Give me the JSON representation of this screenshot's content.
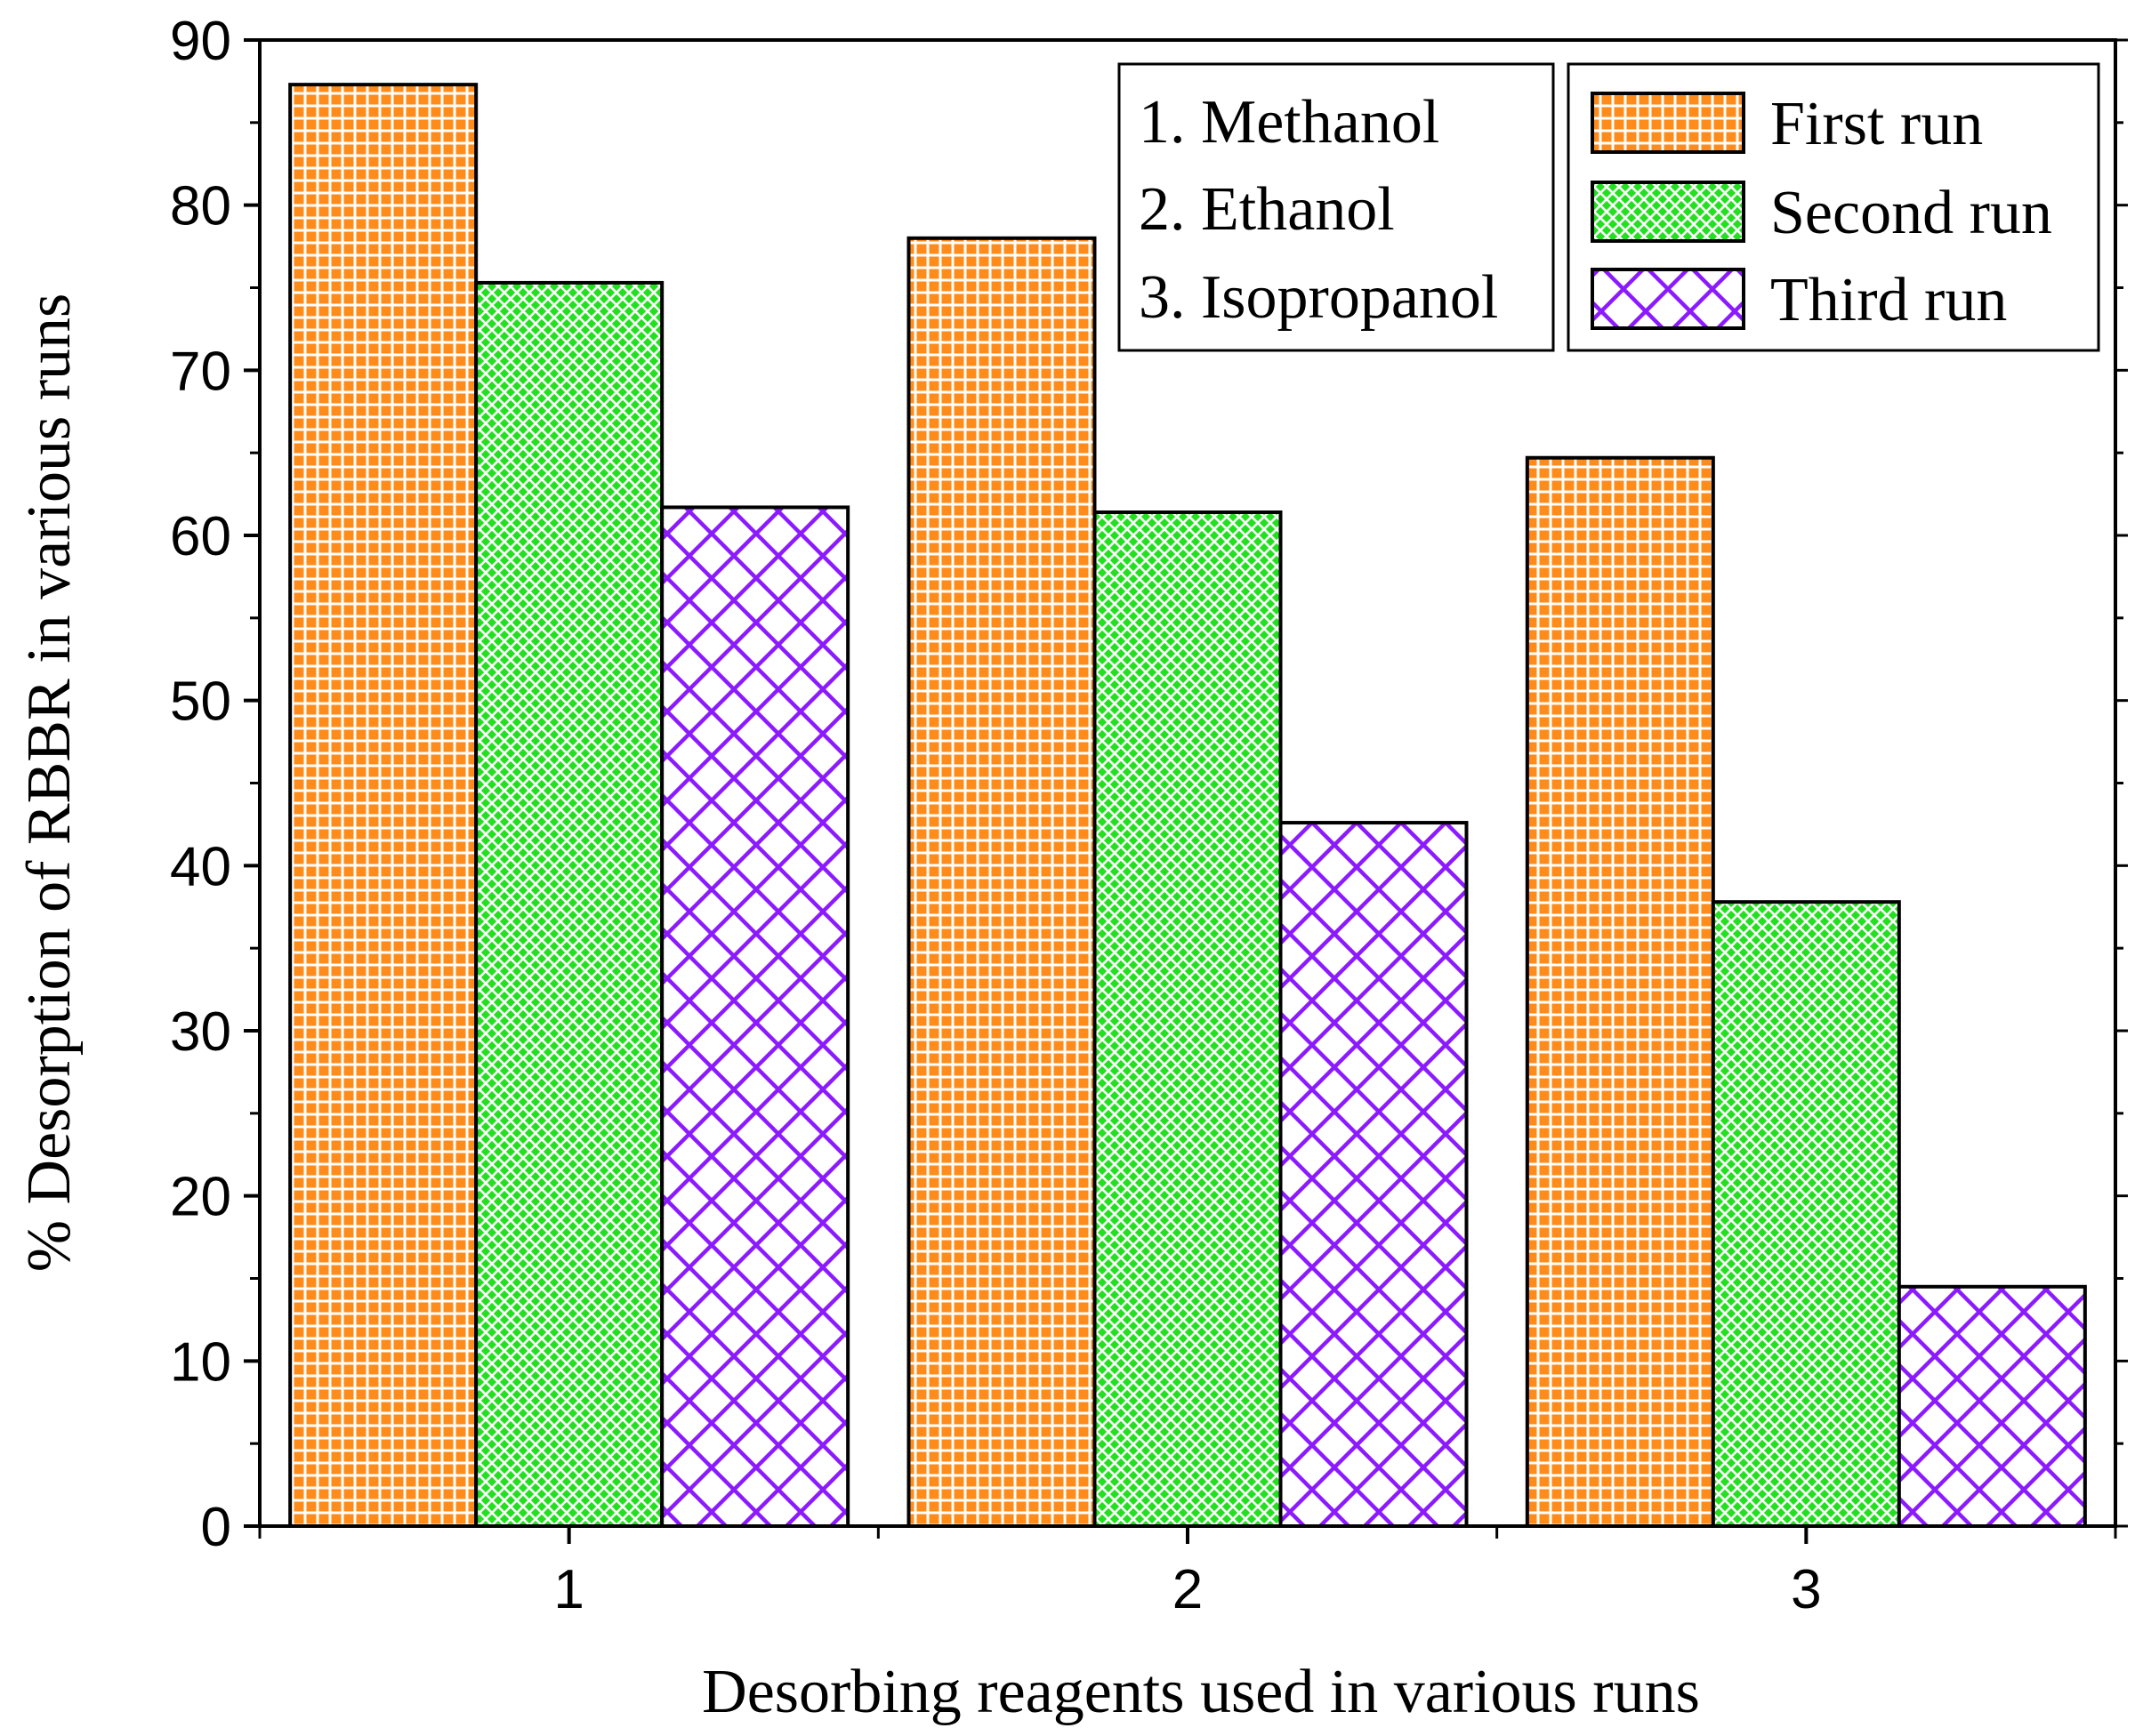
{
  "chart_data": {
    "type": "bar",
    "xlabel": "Desorbing reagents used in various runs",
    "ylabel": "% Desorption of RBBR  in various runs",
    "ylim": [
      0,
      90
    ],
    "yticks": [
      0,
      10,
      20,
      30,
      40,
      50,
      60,
      70,
      80,
      90
    ],
    "categories": [
      "1",
      "2",
      "3"
    ],
    "series": [
      {
        "name": "First run",
        "values": [
          87.3,
          78.0,
          64.7
        ],
        "color": "#ff8c1a",
        "pattern": "grid"
      },
      {
        "name": "Second run",
        "values": [
          75.3,
          61.4,
          37.8
        ],
        "color": "#22e01f",
        "pattern": "diamond"
      },
      {
        "name": "Third run",
        "values": [
          61.7,
          42.6,
          14.5
        ],
        "color": "#8c1aff",
        "pattern": "crosshatch"
      }
    ],
    "reagent_key": [
      "1. Methanol",
      "2. Ethanol",
      "3. Isopropanol"
    ],
    "legend_position": "top-right",
    "grid": false
  }
}
